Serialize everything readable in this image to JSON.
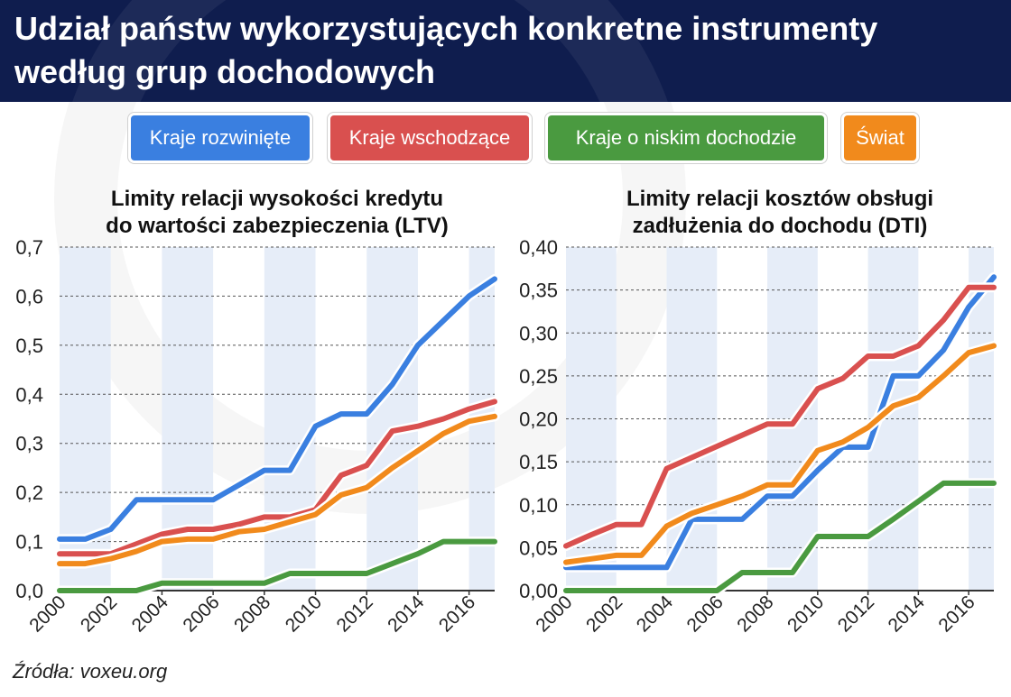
{
  "title": "Udział państw wykorzystujących konkretne instrumenty według grup dochodowych",
  "source": "Źródła: voxeu.org",
  "legend": [
    {
      "label": "Kraje rozwinięte",
      "color": "#3a7fe0"
    },
    {
      "label": "Kraje wschodzące",
      "color": "#d9504f"
    },
    {
      "label": "Kraje o niskim dochodzie",
      "color": "#4a9a40"
    },
    {
      "label": "Świat",
      "color": "#f18a1c"
    }
  ],
  "chart_data": [
    {
      "type": "line",
      "title": "Limity relacji wysokości kredytu do wartości zabezpieczenia (LTV)",
      "xlabel": "",
      "ylabel": "",
      "xlim": [
        2000,
        2017
      ],
      "ylim": [
        0,
        0.7
      ],
      "yticks": [
        "0,0",
        "0,1",
        "0,2",
        "0,3",
        "0,4",
        "0,5",
        "0,6",
        "0,7"
      ],
      "xticks": [
        "2000",
        "2002",
        "2004",
        "2006",
        "2008",
        "2010",
        "2012",
        "2014",
        "2016"
      ],
      "grid": true,
      "x": [
        2000,
        2001,
        2002,
        2003,
        2004,
        2005,
        2006,
        2007,
        2008,
        2009,
        2010,
        2011,
        2012,
        2013,
        2014,
        2015,
        2016,
        2017
      ],
      "series": [
        {
          "name": "Kraje rozwinięte",
          "color": "#3a7fe0",
          "values": [
            0.105,
            0.105,
            0.125,
            0.185,
            0.185,
            0.185,
            0.185,
            0.215,
            0.245,
            0.245,
            0.335,
            0.36,
            0.36,
            0.42,
            0.5,
            0.55,
            0.6,
            0.635
          ]
        },
        {
          "name": "Kraje wschodzące",
          "color": "#d9504f",
          "values": [
            0.075,
            0.075,
            0.075,
            0.095,
            0.115,
            0.125,
            0.125,
            0.135,
            0.15,
            0.15,
            0.165,
            0.235,
            0.255,
            0.325,
            0.335,
            0.35,
            0.37,
            0.385
          ]
        },
        {
          "name": "Kraje o niskim dochodzie",
          "color": "#4a9a40",
          "values": [
            0.0,
            0.0,
            0.0,
            0.0,
            0.015,
            0.015,
            0.015,
            0.015,
            0.015,
            0.035,
            0.035,
            0.035,
            0.035,
            0.055,
            0.075,
            0.1,
            0.1,
            0.1
          ]
        },
        {
          "name": "Świat",
          "color": "#f18a1c",
          "values": [
            0.055,
            0.055,
            0.065,
            0.08,
            0.1,
            0.105,
            0.105,
            0.12,
            0.125,
            0.14,
            0.155,
            0.195,
            0.21,
            0.25,
            0.285,
            0.32,
            0.345,
            0.355
          ]
        }
      ]
    },
    {
      "type": "line",
      "title": "Limity relacji kosztów obsługi zadłużenia do dochodu (DTI)",
      "xlabel": "",
      "ylabel": "",
      "xlim": [
        2000,
        2017
      ],
      "ylim": [
        0,
        0.4
      ],
      "yticks": [
        "0,00",
        "0,05",
        "0,10",
        "0,15",
        "0,20",
        "0,25",
        "0,30",
        "0,35",
        "0,40"
      ],
      "xticks": [
        "2000",
        "2002",
        "2004",
        "2006",
        "2008",
        "2010",
        "2012",
        "2014",
        "2016"
      ],
      "grid": true,
      "x": [
        2000,
        2001,
        2002,
        2003,
        2004,
        2005,
        2006,
        2007,
        2008,
        2009,
        2010,
        2011,
        2012,
        2013,
        2014,
        2015,
        2016,
        2017
      ],
      "series": [
        {
          "name": "Kraje rozwinięte",
          "color": "#3a7fe0",
          "values": [
            0.027,
            0.027,
            0.027,
            0.027,
            0.027,
            0.083,
            0.083,
            0.083,
            0.11,
            0.11,
            0.14,
            0.167,
            0.167,
            0.25,
            0.25,
            0.28,
            0.33,
            0.365
          ]
        },
        {
          "name": "Kraje wschodzące",
          "color": "#d9504f",
          "values": [
            0.052,
            0.065,
            0.077,
            0.077,
            0.142,
            0.155,
            0.168,
            0.181,
            0.194,
            0.194,
            0.235,
            0.247,
            0.273,
            0.273,
            0.285,
            0.315,
            0.353,
            0.353
          ]
        },
        {
          "name": "Kraje o niskim dochodzie",
          "color": "#4a9a40",
          "values": [
            0.0,
            0.0,
            0.0,
            0.0,
            0.0,
            0.0,
            0.0,
            0.021,
            0.021,
            0.021,
            0.063,
            0.063,
            0.063,
            0.083,
            0.104,
            0.125,
            0.125,
            0.125
          ]
        },
        {
          "name": "Świat",
          "color": "#f18a1c",
          "values": [
            0.033,
            0.037,
            0.041,
            0.041,
            0.075,
            0.09,
            0.1,
            0.11,
            0.123,
            0.123,
            0.163,
            0.173,
            0.19,
            0.215,
            0.225,
            0.25,
            0.277,
            0.285
          ]
        }
      ]
    }
  ]
}
